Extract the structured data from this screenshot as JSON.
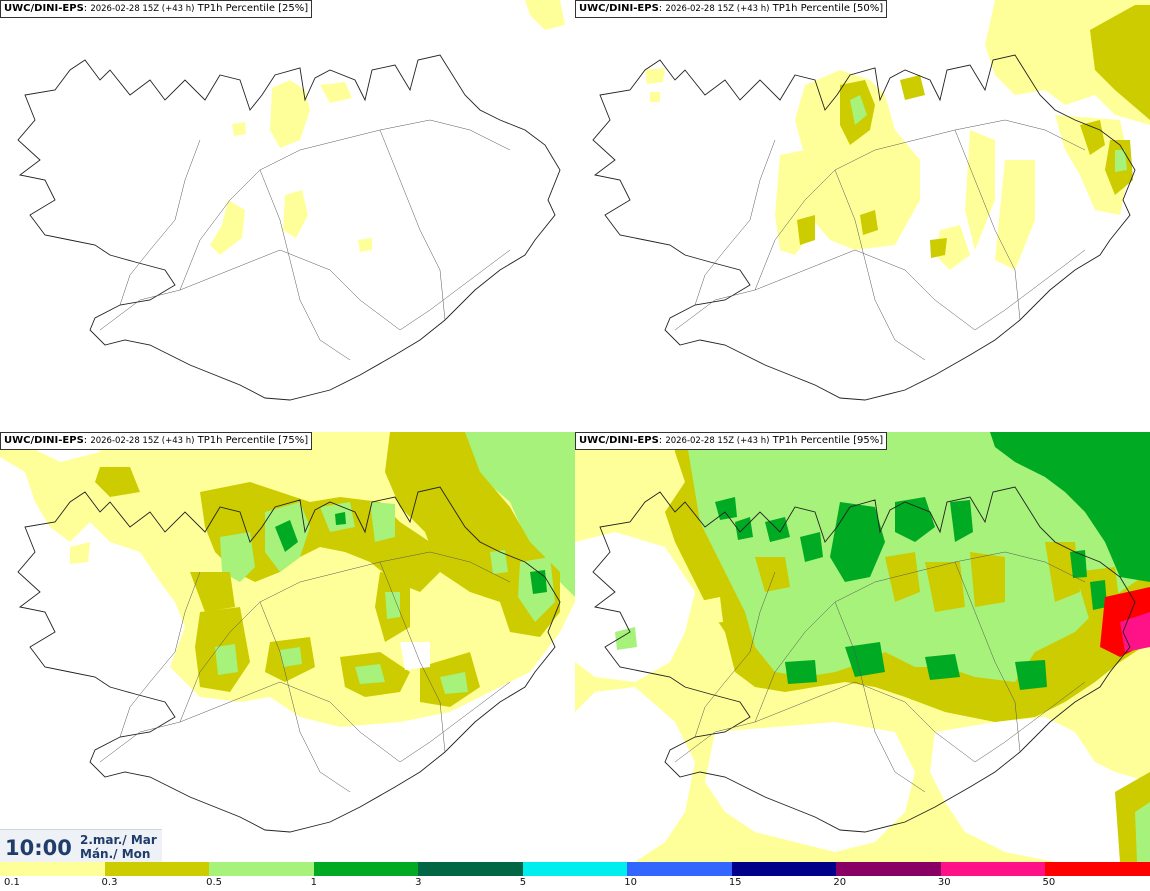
{
  "panels": [
    {
      "id": "p25",
      "model": "UWC/DINI-EPS",
      "meta": "2026-02-28 15Z (+43 h)",
      "field": "TP1h Percentile [25%]"
    },
    {
      "id": "p50",
      "model": "UWC/DINI-EPS",
      "meta": "2026-02-28 15Z (+43 h)",
      "field": "TP1h Percentile [50%]"
    },
    {
      "id": "p75",
      "model": "UWC/DINI-EPS",
      "meta": "2026-02-28 15Z (+43 h)",
      "field": "TP1h Percentile [75%]"
    },
    {
      "id": "p95",
      "model": "UWC/DINI-EPS",
      "meta": "2026-02-28 15Z (+43 h)",
      "field": "TP1h Percentile [95%]"
    }
  ],
  "clock": {
    "time": "10:00",
    "date_line1": "2.mar./ Mar",
    "date_line2": "Mán./ Mon"
  },
  "legend": {
    "colors": [
      "#ffff99",
      "#cccc00",
      "#a6f27a",
      "#00aa22",
      "#006644",
      "#00eeee",
      "#3366ff",
      "#000088",
      "#880066",
      "#ff1188",
      "#ff0000"
    ],
    "labels": [
      "0.1",
      "0.3",
      "0.5",
      "1",
      "3",
      "5",
      "10",
      "15",
      "20",
      "30",
      "50"
    ]
  },
  "colors": {
    "light_yellow": "#ffff99",
    "olive": "#cccc00",
    "light_green": "#a6f27a",
    "green": "#00aa22"
  }
}
